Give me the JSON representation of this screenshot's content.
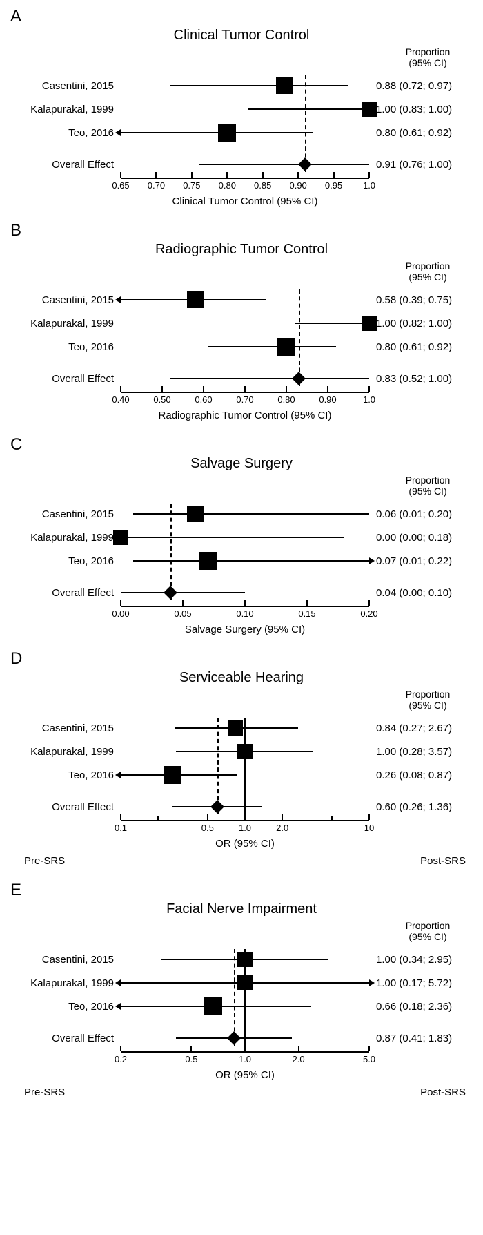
{
  "column_header_line1": "Proportion",
  "column_header_line2": "(95% CI)",
  "panels": [
    {
      "letter": "A",
      "title": "Clinical Tumor Control",
      "axis_title": "Clinical Tumor Control (95% CI)",
      "scale": "linear",
      "xmin": 0.65,
      "xmax": 1.0,
      "ticks": [
        0.65,
        0.7,
        0.75,
        0.8,
        0.85,
        0.9,
        0.95,
        1.0
      ],
      "tick_labels": [
        "0.65",
        "0.70",
        "0.75",
        "0.80",
        "0.85",
        "0.90",
        "0.95",
        "1.0"
      ],
      "overall_ref": 0.91,
      "solid_ref": null,
      "side_left": null,
      "side_right": null,
      "rows": [
        {
          "label": "Casentini, 2015",
          "est": 0.88,
          "lo": 0.72,
          "hi": 0.97,
          "text": "0.88 (0.72; 0.97)",
          "sq": 24,
          "lo_arrow": false,
          "hi_arrow": false
        },
        {
          "label": "Kalapurakal, 1999",
          "est": 1.0,
          "lo": 0.83,
          "hi": 1.0,
          "text": "1.00 (0.83; 1.00)",
          "sq": 22,
          "lo_arrow": false,
          "hi_arrow": false
        },
        {
          "label": "Teo, 2016",
          "est": 0.8,
          "lo": 0.61,
          "hi": 0.92,
          "text": "0.80 (0.61; 0.92)",
          "sq": 26,
          "lo_arrow": true,
          "hi_arrow": false
        }
      ],
      "overall": {
        "label": "Overall Effect",
        "est": 0.91,
        "lo": 0.76,
        "hi": 1.0,
        "text": "0.91 (0.76; 1.00)",
        "dia": 14
      }
    },
    {
      "letter": "B",
      "title": "Radiographic Tumor Control",
      "axis_title": "Radiographic Tumor Control (95% CI)",
      "scale": "linear",
      "xmin": 0.4,
      "xmax": 1.0,
      "ticks": [
        0.4,
        0.5,
        0.6,
        0.7,
        0.8,
        0.9,
        1.0
      ],
      "tick_labels": [
        "0.40",
        "0.50",
        "0.60",
        "0.70",
        "0.80",
        "0.90",
        "1.0"
      ],
      "overall_ref": 0.83,
      "solid_ref": null,
      "side_left": null,
      "side_right": null,
      "rows": [
        {
          "label": "Casentini, 2015",
          "est": 0.58,
          "lo": 0.39,
          "hi": 0.75,
          "text": "0.58 (0.39; 0.75)",
          "sq": 24,
          "lo_arrow": true,
          "hi_arrow": false
        },
        {
          "label": "Kalapurakal, 1999",
          "est": 1.0,
          "lo": 0.82,
          "hi": 1.0,
          "text": "1.00 (0.82; 1.00)",
          "sq": 22,
          "lo_arrow": false,
          "hi_arrow": false
        },
        {
          "label": "Teo, 2016",
          "est": 0.8,
          "lo": 0.61,
          "hi": 0.92,
          "text": "0.80 (0.61; 0.92)",
          "sq": 26,
          "lo_arrow": false,
          "hi_arrow": false
        }
      ],
      "overall": {
        "label": "Overall Effect",
        "est": 0.83,
        "lo": 0.52,
        "hi": 1.0,
        "text": "0.83 (0.52; 1.00)",
        "dia": 14
      }
    },
    {
      "letter": "C",
      "title": "Salvage Surgery",
      "axis_title": "Salvage Surgery (95% CI)",
      "scale": "linear",
      "xmin": 0.0,
      "xmax": 0.2,
      "ticks": [
        0.0,
        0.05,
        0.1,
        0.15,
        0.2
      ],
      "tick_labels": [
        "0.00",
        "0.05",
        "0.10",
        "0.15",
        "0.20"
      ],
      "overall_ref": 0.04,
      "solid_ref": null,
      "side_left": null,
      "side_right": null,
      "rows": [
        {
          "label": "Casentini, 2015",
          "est": 0.06,
          "lo": 0.01,
          "hi": 0.2,
          "text": "0.06 (0.01; 0.20)",
          "sq": 24,
          "lo_arrow": false,
          "hi_arrow": false
        },
        {
          "label": "Kalapurakal, 1999",
          "est": 0.0,
          "lo": 0.0,
          "hi": 0.18,
          "text": "0.00 (0.00; 0.18)",
          "sq": 22,
          "lo_arrow": false,
          "hi_arrow": false
        },
        {
          "label": "Teo, 2016",
          "est": 0.07,
          "lo": 0.01,
          "hi": 0.22,
          "text": "0.07 (0.01; 0.22)",
          "sq": 26,
          "lo_arrow": false,
          "hi_arrow": true
        }
      ],
      "overall": {
        "label": "Overall Effect",
        "est": 0.04,
        "lo": 0.0,
        "hi": 0.1,
        "text": "0.04 (0.00; 0.10)",
        "dia": 14
      }
    },
    {
      "letter": "D",
      "title": "Serviceable Hearing",
      "axis_title": "OR (95% CI)",
      "scale": "log",
      "xmin": 0.1,
      "xmax": 10,
      "ticks": [
        0.1,
        0.2,
        0.5,
        1.0,
        2.0,
        5.0,
        10
      ],
      "tick_labels": [
        "0.1",
        "",
        "0.5",
        "1.0",
        "2.0",
        "",
        "10"
      ],
      "minor_major": [
        true,
        false,
        true,
        true,
        true,
        false,
        true
      ],
      "overall_ref": 0.6,
      "solid_ref": 1.0,
      "side_left": "Pre-SRS",
      "side_right": "Post-SRS",
      "rows": [
        {
          "label": "Casentini, 2015",
          "est": 0.84,
          "lo": 0.27,
          "hi": 2.67,
          "text": "0.84 (0.27; 2.67)",
          "sq": 22,
          "lo_arrow": false,
          "hi_arrow": false
        },
        {
          "label": "Kalapurakal, 1999",
          "est": 1.0,
          "lo": 0.28,
          "hi": 3.57,
          "text": "1.00 (0.28; 3.57)",
          "sq": 22,
          "lo_arrow": false,
          "hi_arrow": false
        },
        {
          "label": "Teo, 2016",
          "est": 0.26,
          "lo": 0.08,
          "hi": 0.87,
          "text": "0.26 (0.08; 0.87)",
          "sq": 26,
          "lo_arrow": true,
          "hi_arrow": false
        }
      ],
      "overall": {
        "label": "Overall Effect",
        "est": 0.6,
        "lo": 0.26,
        "hi": 1.36,
        "text": "0.60 (0.26; 1.36)",
        "dia": 14
      }
    },
    {
      "letter": "E",
      "title": "Facial Nerve Impairment",
      "axis_title": "OR (95% CI)",
      "scale": "log",
      "xmin": 0.2,
      "xmax": 5.0,
      "ticks": [
        0.2,
        0.5,
        1.0,
        2.0,
        5.0
      ],
      "tick_labels": [
        "0.2",
        "0.5",
        "1.0",
        "2.0",
        "5.0"
      ],
      "overall_ref": 0.87,
      "solid_ref": 1.0,
      "side_left": "Pre-SRS",
      "side_right": "Post-SRS",
      "rows": [
        {
          "label": "Casentini, 2015",
          "est": 1.0,
          "lo": 0.34,
          "hi": 2.95,
          "text": "1.00 (0.34; 2.95)",
          "sq": 22,
          "lo_arrow": false,
          "hi_arrow": false
        },
        {
          "label": "Kalapurakal, 1999",
          "est": 1.0,
          "lo": 0.17,
          "hi": 5.72,
          "text": "1.00 (0.17; 5.72)",
          "sq": 22,
          "lo_arrow": true,
          "hi_arrow": true
        },
        {
          "label": "Teo, 2016",
          "est": 0.66,
          "lo": 0.18,
          "hi": 2.36,
          "text": "0.66 (0.18; 2.36)",
          "sq": 26,
          "lo_arrow": true,
          "hi_arrow": false
        }
      ],
      "overall": {
        "label": "Overall Effect",
        "est": 0.87,
        "lo": 0.41,
        "hi": 1.83,
        "text": "0.87 (0.41; 1.83)",
        "dia": 14
      }
    }
  ],
  "colors": {
    "bg": "#ffffff",
    "fg": "#000000"
  }
}
